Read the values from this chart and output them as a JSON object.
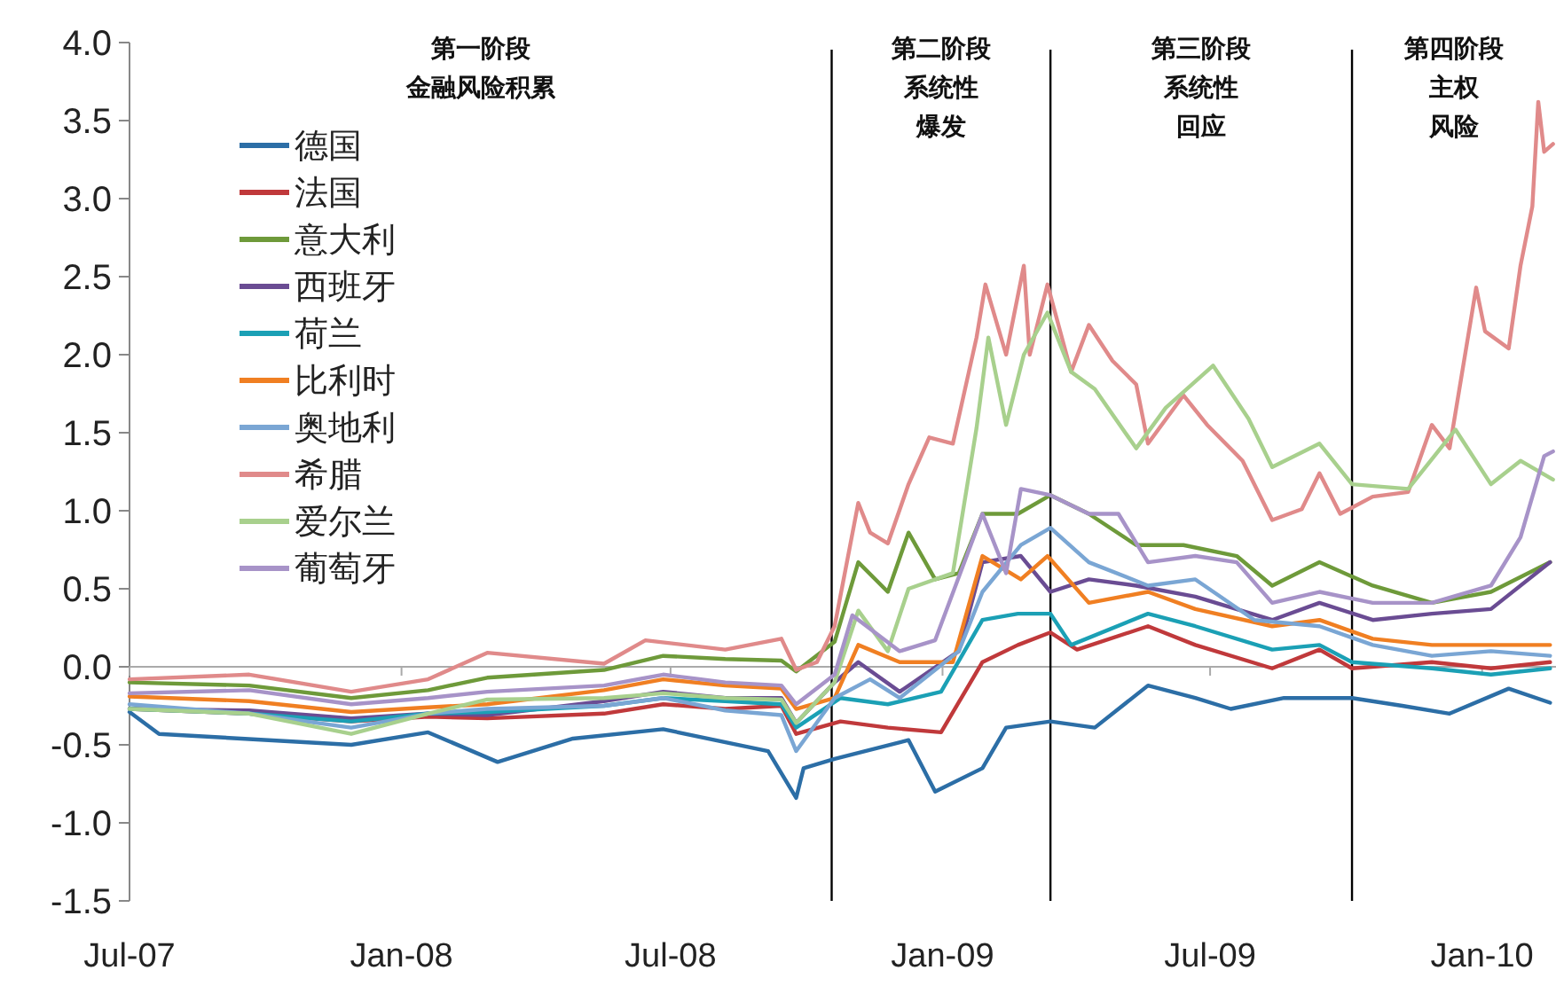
{
  "chart_data": {
    "type": "line",
    "legend": "top left",
    "line_style": "solid",
    "xlim": [
      "2007-07-01",
      "2010-02-20"
    ],
    "xticks": [
      {
        "value": "2007-07",
        "label": "Jul-07"
      },
      {
        "value": "2008-01",
        "label": "Jan-08"
      },
      {
        "value": "2008-07",
        "label": "Jul-08"
      },
      {
        "value": "2009-01",
        "label": "Jan-09"
      },
      {
        "value": "2009-07",
        "label": "Jul-09"
      },
      {
        "value": "2010-01",
        "label": "Jan-10"
      }
    ],
    "ylim": [
      -1.5,
      4.0
    ],
    "yticks": [
      {
        "value": -1.5,
        "label": "-1.5"
      },
      {
        "value": -1.0,
        "label": "-1.0"
      },
      {
        "value": -0.5,
        "label": "-0.5"
      },
      {
        "value": 0,
        "label": "0.0"
      },
      {
        "value": 0.5,
        "label": "0.5"
      },
      {
        "value": 1.0,
        "label": "1.0"
      },
      {
        "value": 1.5,
        "label": "1.5"
      },
      {
        "value": 2.0,
        "label": "2.0"
      },
      {
        "value": 2.5,
        "label": "2.5"
      },
      {
        "value": 3.0,
        "label": "3.0"
      },
      {
        "value": 3.5,
        "label": "3.5"
      },
      {
        "value": 4.0,
        "label": "4.0"
      }
    ],
    "ref_lines": [
      {
        "axis": "x",
        "value": "2008-10-18",
        "color": "#000000"
      },
      {
        "axis": "x",
        "value": "2009-03-15",
        "color": "#000000"
      },
      {
        "axis": "x",
        "value": "2009-10-05",
        "color": "#000000"
      }
    ],
    "annotations": [
      "第一阶段金融风险积累",
      "第二阶段系统性爆发",
      "第三阶段系统性回应",
      "第四阶段主权风险"
    ],
    "series": [
      {
        "name": "德国",
        "color": "#2c6ea6",
        "x": [
          "2007-07-01",
          "2007-07-21",
          "2007-11-28",
          "2008-01-19",
          "2008-03-06",
          "2008-04-26",
          "2008-06-26",
          "2008-09-05",
          "2008-09-24",
          "2008-09-29",
          "2008-10-20",
          "2008-12-09",
          "2008-12-27",
          "2009-01-28",
          "2009-02-13",
          "2009-03-15",
          "2009-04-14",
          "2009-05-20",
          "2009-06-21",
          "2009-07-15",
          "2009-08-20",
          "2009-10-05",
          "2009-11-08",
          "2009-12-10",
          "2010-01-19",
          "2010-02-16"
        ],
        "values": [
          -0.29,
          -0.43,
          -0.5,
          -0.42,
          -0.61,
          -0.46,
          -0.4,
          -0.54,
          -0.84,
          -0.65,
          -0.59,
          -0.47,
          -0.8,
          -0.65,
          -0.39,
          -0.35,
          -0.39,
          -0.12,
          -0.2,
          -0.27,
          -0.2,
          -0.2,
          -0.25,
          -0.3,
          -0.14,
          -0.23
        ]
      },
      {
        "name": "法国",
        "color": "#c0393b",
        "x": [
          "2007-07-01",
          "2007-09-20",
          "2007-11-28",
          "2008-01-19",
          "2008-02-28",
          "2008-05-17",
          "2008-06-26",
          "2008-08-07",
          "2008-09-14",
          "2008-09-24",
          "2008-10-24",
          "2008-11-25",
          "2008-12-31",
          "2009-01-28",
          "2009-02-21",
          "2009-03-15",
          "2009-04-02",
          "2009-05-20",
          "2009-06-21",
          "2009-08-12",
          "2009-09-13",
          "2009-10-05",
          "2009-11-28",
          "2010-01-07",
          "2010-02-16"
        ],
        "values": [
          -0.27,
          -0.3,
          -0.35,
          -0.32,
          -0.33,
          -0.3,
          -0.24,
          -0.27,
          -0.25,
          -0.43,
          -0.35,
          -0.39,
          -0.42,
          0.03,
          0.14,
          0.22,
          0.11,
          0.26,
          0.14,
          -0.01,
          0.11,
          -0.01,
          0.03,
          -0.01,
          0.03
        ]
      },
      {
        "name": "意大利",
        "color": "#6e9a3a",
        "x": [
          "2007-07-01",
          "2007-09-20",
          "2007-11-28",
          "2008-01-19",
          "2008-02-28",
          "2008-05-17",
          "2008-06-26",
          "2008-08-07",
          "2008-09-14",
          "2008-09-24",
          "2008-10-20",
          "2008-11-05",
          "2008-11-25",
          "2008-12-09",
          "2008-12-27",
          "2009-01-12",
          "2009-01-28",
          "2009-02-21",
          "2009-03-15",
          "2009-04-10",
          "2009-05-12",
          "2009-06-13",
          "2009-07-19",
          "2009-08-12",
          "2009-09-13",
          "2009-10-19",
          "2009-11-28",
          "2010-01-07",
          "2010-02-16"
        ],
        "values": [
          -0.1,
          -0.12,
          -0.2,
          -0.15,
          -0.07,
          -0.02,
          0.07,
          0.05,
          0.04,
          -0.03,
          0.16,
          0.67,
          0.48,
          0.86,
          0.56,
          0.6,
          0.98,
          0.98,
          1.1,
          0.98,
          0.78,
          0.78,
          0.71,
          0.52,
          0.67,
          0.52,
          0.41,
          0.48,
          0.67
        ]
      },
      {
        "name": "西班牙",
        "color": "#6a4c93",
        "x": [
          "2007-07-01",
          "2007-09-20",
          "2007-11-28",
          "2008-01-19",
          "2008-02-28",
          "2008-05-17",
          "2008-06-26",
          "2008-08-07",
          "2008-09-14",
          "2008-09-24",
          "2008-10-20",
          "2008-11-05",
          "2008-12-03",
          "2009-01-12",
          "2009-01-28",
          "2009-02-23",
          "2009-03-15",
          "2009-04-10",
          "2009-05-12",
          "2009-06-21",
          "2009-08-12",
          "2009-09-13",
          "2009-10-19",
          "2009-11-28",
          "2010-01-07",
          "2010-02-16"
        ],
        "values": [
          -0.27,
          -0.28,
          -0.33,
          -0.3,
          -0.31,
          -0.22,
          -0.16,
          -0.2,
          -0.2,
          -0.36,
          -0.1,
          0.03,
          -0.16,
          0.1,
          0.67,
          0.71,
          0.48,
          0.56,
          0.52,
          0.45,
          0.3,
          0.41,
          0.3,
          0.34,
          0.37,
          0.67
        ]
      },
      {
        "name": "荷兰",
        "color": "#1ba0b5",
        "x": [
          "2007-07-01",
          "2007-09-20",
          "2007-11-28",
          "2008-01-19",
          "2008-02-28",
          "2008-05-17",
          "2008-06-26",
          "2008-08-07",
          "2008-09-14",
          "2008-09-24",
          "2008-10-24",
          "2008-11-25",
          "2008-12-31",
          "2009-01-28",
          "2009-02-21",
          "2009-03-15",
          "2009-03-29",
          "2009-05-20",
          "2009-06-21",
          "2009-08-12",
          "2009-09-13",
          "2009-10-05",
          "2009-11-28",
          "2010-01-07",
          "2010-02-16"
        ],
        "values": [
          -0.27,
          -0.3,
          -0.35,
          -0.3,
          -0.29,
          -0.25,
          -0.2,
          -0.22,
          -0.24,
          -0.39,
          -0.2,
          -0.24,
          -0.16,
          0.3,
          0.34,
          0.34,
          0.14,
          0.34,
          0.26,
          0.11,
          0.14,
          0.03,
          -0.01,
          -0.05,
          -0.01
        ]
      },
      {
        "name": "比利时",
        "color": "#f07f22",
        "x": [
          "2007-07-01",
          "2007-09-20",
          "2007-11-28",
          "2008-01-19",
          "2008-02-28",
          "2008-05-17",
          "2008-06-26",
          "2008-08-07",
          "2008-09-14",
          "2008-09-24",
          "2008-10-20",
          "2008-11-05",
          "2008-12-03",
          "2009-01-08",
          "2009-01-28",
          "2009-02-23",
          "2009-03-13",
          "2009-04-10",
          "2009-05-20",
          "2009-06-21",
          "2009-08-12",
          "2009-09-13",
          "2009-10-19",
          "2009-11-28",
          "2010-01-07",
          "2010-02-16"
        ],
        "values": [
          -0.19,
          -0.22,
          -0.29,
          -0.26,
          -0.24,
          -0.15,
          -0.08,
          -0.12,
          -0.14,
          -0.27,
          -0.2,
          0.14,
          0.03,
          0.03,
          0.71,
          0.56,
          0.71,
          0.41,
          0.48,
          0.37,
          0.26,
          0.3,
          0.18,
          0.14,
          0.14,
          0.14
        ]
      },
      {
        "name": "奥地利",
        "color": "#7aa6d4",
        "x": [
          "2007-07-01",
          "2007-09-20",
          "2007-11-28",
          "2008-01-19",
          "2008-02-28",
          "2008-05-17",
          "2008-06-26",
          "2008-08-07",
          "2008-09-14",
          "2008-09-24",
          "2008-10-20",
          "2008-11-13",
          "2008-12-03",
          "2009-01-12",
          "2009-01-28",
          "2009-02-23",
          "2009-03-15",
          "2009-04-10",
          "2009-05-20",
          "2009-06-21",
          "2009-07-31",
          "2009-09-13",
          "2009-10-19",
          "2009-11-28",
          "2010-01-07",
          "2010-02-16"
        ],
        "values": [
          -0.24,
          -0.3,
          -0.39,
          -0.3,
          -0.27,
          -0.25,
          -0.2,
          -0.28,
          -0.31,
          -0.54,
          -0.2,
          -0.08,
          -0.2,
          0.1,
          0.48,
          0.78,
          0.89,
          0.67,
          0.52,
          0.56,
          0.3,
          0.26,
          0.14,
          0.07,
          0.1,
          0.07
        ]
      },
      {
        "name": "希腊",
        "color": "#e08a8a",
        "x": [
          "2007-07-01",
          "2007-09-20",
          "2007-11-28",
          "2008-01-19",
          "2008-02-28",
          "2008-05-17",
          "2008-06-14",
          "2008-08-07",
          "2008-09-14",
          "2008-09-24",
          "2008-10-08",
          "2008-10-20",
          "2008-11-05",
          "2008-11-13",
          "2008-11-25",
          "2008-12-09",
          "2008-12-23",
          "2009-01-08",
          "2009-01-24",
          "2009-01-30",
          "2009-02-13",
          "2009-02-25",
          "2009-03-01",
          "2009-03-13",
          "2009-03-29",
          "2009-04-10",
          "2009-04-26",
          "2009-05-12",
          "2009-05-20",
          "2009-06-13",
          "2009-06-29",
          "2009-07-23",
          "2009-08-12",
          "2009-09-01",
          "2009-09-13",
          "2009-09-27",
          "2009-10-19",
          "2009-11-12",
          "2009-11-28",
          "2009-12-10",
          "2009-12-28",
          "2010-01-03",
          "2010-01-19",
          "2010-01-27",
          "2010-02-04",
          "2010-02-08",
          "2010-02-12",
          "2010-02-18"
        ],
        "values": [
          -0.08,
          -0.05,
          -0.16,
          -0.08,
          0.09,
          0.02,
          0.17,
          0.11,
          0.18,
          -0.02,
          0.03,
          0.26,
          1.05,
          0.86,
          0.79,
          1.17,
          1.47,
          1.43,
          2.11,
          2.45,
          2.0,
          2.57,
          2.0,
          2.45,
          1.89,
          2.19,
          1.96,
          1.81,
          1.43,
          1.74,
          1.55,
          1.32,
          0.94,
          1.01,
          1.24,
          0.98,
          1.09,
          1.12,
          1.55,
          1.4,
          2.43,
          2.15,
          2.04,
          2.57,
          2.95,
          3.62,
          3.3,
          3.35
        ]
      },
      {
        "name": "爱尔兰",
        "color": "#a8d08d",
        "x": [
          "2007-07-01",
          "2007-09-20",
          "2007-11-28",
          "2008-01-19",
          "2008-02-28",
          "2008-05-17",
          "2008-06-26",
          "2008-08-07",
          "2008-09-14",
          "2008-09-24",
          "2008-10-20",
          "2008-11-05",
          "2008-11-25",
          "2008-12-09",
          "2009-01-08",
          "2009-01-24",
          "2009-02-01",
          "2009-02-13",
          "2009-02-25",
          "2009-03-13",
          "2009-03-29",
          "2009-04-14",
          "2009-05-12",
          "2009-06-01",
          "2009-07-03",
          "2009-07-27",
          "2009-08-12",
          "2009-09-13",
          "2009-10-05",
          "2009-11-12",
          "2009-12-14",
          "2010-01-07",
          "2010-01-27",
          "2010-02-18"
        ],
        "values": [
          -0.27,
          -0.3,
          -0.43,
          -0.3,
          -0.21,
          -0.2,
          -0.17,
          -0.2,
          -0.21,
          -0.36,
          -0.1,
          0.36,
          0.1,
          0.5,
          0.6,
          1.53,
          2.11,
          1.55,
          2.0,
          2.27,
          1.89,
          1.78,
          1.4,
          1.66,
          1.93,
          1.59,
          1.28,
          1.43,
          1.17,
          1.14,
          1.52,
          1.17,
          1.32,
          1.2
        ]
      },
      {
        "name": "葡萄牙",
        "color": "#a793c8",
        "x": [
          "2007-07-01",
          "2007-09-20",
          "2007-11-28",
          "2008-01-19",
          "2008-02-28",
          "2008-05-17",
          "2008-06-26",
          "2008-08-07",
          "2008-09-14",
          "2008-09-24",
          "2008-10-20",
          "2008-11-01",
          "2008-12-03",
          "2008-12-27",
          "2009-01-28",
          "2009-02-13",
          "2009-02-23",
          "2009-03-15",
          "2009-04-10",
          "2009-04-30",
          "2009-05-20",
          "2009-06-21",
          "2009-07-19",
          "2009-08-12",
          "2009-09-13",
          "2009-10-19",
          "2009-11-28",
          "2010-01-07",
          "2010-01-27",
          "2010-02-12",
          "2010-02-18"
        ],
        "values": [
          -0.17,
          -0.15,
          -0.24,
          -0.2,
          -0.16,
          -0.12,
          -0.05,
          -0.1,
          -0.12,
          -0.24,
          -0.05,
          0.33,
          0.1,
          0.17,
          0.98,
          0.6,
          1.14,
          1.1,
          0.98,
          0.98,
          0.67,
          0.71,
          0.67,
          0.41,
          0.48,
          0.41,
          0.41,
          0.52,
          0.83,
          1.35,
          1.38
        ]
      }
    ]
  }
}
